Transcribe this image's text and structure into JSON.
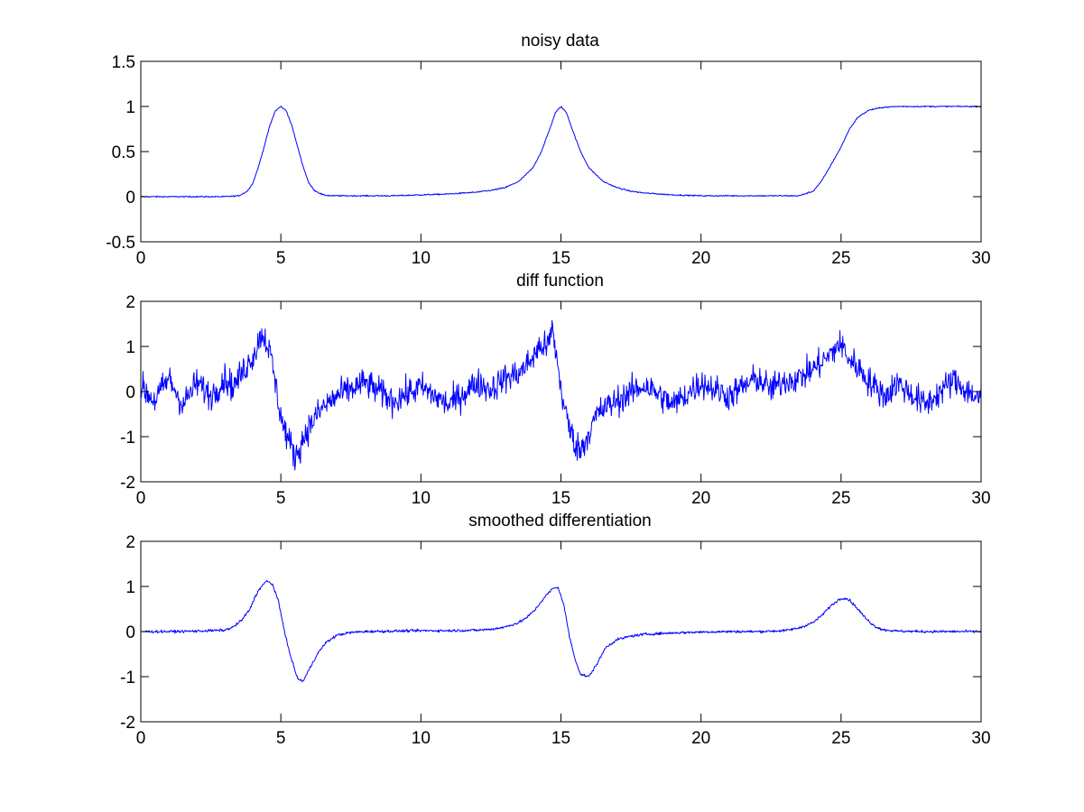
{
  "figure": {
    "background": "#ffffff",
    "axes_color": "#000000"
  },
  "chart_data": [
    {
      "type": "line",
      "title": "noisy data",
      "xlabel": "",
      "ylabel": "",
      "xlim": [
        0,
        30
      ],
      "ylim": [
        -0.5,
        1.5
      ],
      "x_ticks": [
        "0",
        "5",
        "10",
        "15",
        "20",
        "25",
        "30"
      ],
      "y_ticks": [
        "-0.5",
        "0",
        "0.5",
        "1",
        "1.5"
      ],
      "grid": false,
      "series": [
        {
          "color": "#0000ff",
          "x": [
            0,
            1,
            2,
            3,
            3.5,
            3.8,
            4,
            4.2,
            4.4,
            4.6,
            4.8,
            5,
            5.2,
            5.4,
            5.6,
            5.8,
            6,
            6.2,
            6.5,
            6.8,
            7,
            8,
            9,
            10,
            11,
            12,
            12.5,
            13,
            13.5,
            14,
            14.3,
            14.6,
            14.8,
            15,
            15.2,
            15.4,
            15.7,
            16,
            16.5,
            17,
            17.5,
            18,
            19,
            20,
            21,
            22,
            23,
            23.5,
            24,
            24.3,
            24.6,
            25,
            25.3,
            25.6,
            26,
            26.5,
            27,
            28,
            29,
            30
          ],
          "y": [
            0,
            0,
            0,
            0,
            0.01,
            0.06,
            0.15,
            0.33,
            0.55,
            0.78,
            0.95,
            1,
            0.95,
            0.78,
            0.55,
            0.33,
            0.15,
            0.07,
            0.02,
            0.01,
            0.01,
            0.01,
            0.01,
            0.02,
            0.03,
            0.05,
            0.07,
            0.1,
            0.17,
            0.32,
            0.5,
            0.75,
            0.93,
            1,
            0.93,
            0.75,
            0.5,
            0.32,
            0.17,
            0.1,
            0.06,
            0.04,
            0.02,
            0.01,
            0.01,
            0.01,
            0.01,
            0.01,
            0.06,
            0.17,
            0.33,
            0.55,
            0.75,
            0.88,
            0.96,
            0.99,
            1,
            1,
            1,
            1
          ]
        }
      ]
    },
    {
      "type": "line",
      "title": "diff function",
      "xlabel": "",
      "ylabel": "",
      "xlim": [
        0,
        30
      ],
      "ylim": [
        -2,
        2
      ],
      "x_ticks": [
        "0",
        "5",
        "10",
        "15",
        "20",
        "25",
        "30"
      ],
      "y_ticks": [
        "-2",
        "-1",
        "0",
        "1",
        "2"
      ],
      "grid": false,
      "series": [
        {
          "color": "#0000ff",
          "x": [
            0,
            0.5,
            1,
            1.5,
            2,
            2.5,
            3,
            3.3,
            3.6,
            3.9,
            4.1,
            4.3,
            4.5,
            4.7,
            4.9,
            5.1,
            5.3,
            5.5,
            5.7,
            5.9,
            6.2,
            6.5,
            7,
            7.5,
            8,
            9,
            10,
            11,
            12,
            12.5,
            13,
            13.5,
            13.8,
            14.1,
            14.3,
            14.5,
            14.7,
            14.9,
            15.1,
            15.3,
            15.5,
            15.7,
            16,
            16.3,
            16.6,
            17,
            18,
            19,
            20,
            21,
            22,
            22.5,
            23,
            23.5,
            24,
            24.3,
            24.6,
            24.9,
            25.1,
            25.3,
            25.6,
            25.9,
            26.2,
            26.6,
            27,
            28,
            29,
            30
          ],
          "y": [
            0.1,
            -0.2,
            0.3,
            -0.3,
            0.2,
            -0.1,
            0.3,
            0.1,
            0.4,
            0.7,
            0.9,
            1.3,
            1.1,
            0.6,
            -0.2,
            -0.8,
            -1.1,
            -1.45,
            -1.2,
            -0.9,
            -0.6,
            -0.35,
            -0.1,
            0.05,
            0.2,
            -0.2,
            0.1,
            -0.3,
            0.2,
            0.05,
            0.3,
            0.4,
            0.6,
            0.85,
            1.05,
            0.95,
            1.4,
            0.5,
            -0.3,
            -0.8,
            -1.15,
            -1.3,
            -0.9,
            -0.5,
            -0.35,
            -0.2,
            0.15,
            -0.3,
            0.2,
            -0.1,
            0.3,
            0.05,
            0.25,
            0.3,
            0.5,
            0.65,
            0.8,
            1.05,
            0.95,
            0.7,
            0.55,
            0.3,
            0.1,
            -0.1,
            0.2,
            -0.3,
            0.25,
            -0.2
          ]
        }
      ]
    },
    {
      "type": "line",
      "title": "smoothed differentiation",
      "xlabel": "",
      "ylabel": "",
      "xlim": [
        0,
        30
      ],
      "ylim": [
        -2,
        2
      ],
      "x_ticks": [
        "0",
        "5",
        "10",
        "15",
        "20",
        "25",
        "30"
      ],
      "y_ticks": [
        "-2",
        "-1",
        "0",
        "1",
        "2"
      ],
      "grid": false,
      "series": [
        {
          "color": "#0000ff",
          "x": [
            0,
            1,
            2,
            3,
            3.3,
            3.6,
            3.9,
            4.1,
            4.3,
            4.5,
            4.7,
            4.9,
            5.1,
            5.3,
            5.5,
            5.6,
            5.8,
            6,
            6.3,
            6.6,
            7,
            7.5,
            8,
            9,
            10,
            11,
            12,
            12.5,
            13,
            13.5,
            13.8,
            14.1,
            14.4,
            14.7,
            14.9,
            15.1,
            15.3,
            15.5,
            15.7,
            16,
            16.3,
            16.6,
            17,
            17.5,
            18,
            19,
            20,
            21,
            22,
            23,
            23.5,
            24,
            24.3,
            24.6,
            24.9,
            25.1,
            25.3,
            25.6,
            25.9,
            26.2,
            26.5,
            27,
            28,
            29,
            30
          ],
          "y": [
            0,
            0,
            0.01,
            0.03,
            0.1,
            0.25,
            0.5,
            0.8,
            1,
            1.12,
            1.05,
            0.7,
            0.1,
            -0.45,
            -0.85,
            -1.05,
            -1.1,
            -0.85,
            -0.5,
            -0.25,
            -0.08,
            -0.02,
            0,
            0.01,
            0.02,
            0.02,
            0.03,
            0.05,
            0.1,
            0.2,
            0.32,
            0.5,
            0.75,
            0.95,
            0.98,
            0.6,
            -0.1,
            -0.6,
            -0.95,
            -1,
            -0.7,
            -0.35,
            -0.18,
            -0.1,
            -0.06,
            -0.03,
            -0.01,
            0,
            0,
            0.02,
            0.08,
            0.2,
            0.35,
            0.55,
            0.7,
            0.75,
            0.7,
            0.5,
            0.28,
            0.12,
            0.04,
            0.01,
            0,
            0,
            0
          ]
        }
      ]
    }
  ]
}
